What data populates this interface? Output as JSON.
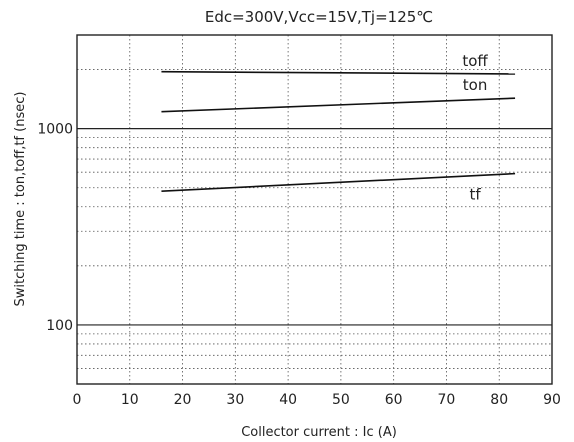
{
  "chart_data": {
    "type": "line",
    "title": "Edc=300V,Vcc=15V,Tj=125℃",
    "xlabel": "Collector current : Ic (A)",
    "ylabel": "Switching time : ton,toff,tf (nsec)",
    "x_scale": "linear",
    "y_scale": "log",
    "xlim": [
      0,
      90
    ],
    "ylim": [
      50,
      3000
    ],
    "x_ticks": [
      0,
      10,
      20,
      30,
      40,
      50,
      60,
      70,
      80,
      90
    ],
    "x_tick_labels": [
      "0",
      "10",
      "20",
      "30",
      "40",
      "50",
      "60",
      "70",
      "80",
      "90"
    ],
    "y_ticks": [
      100,
      1000
    ],
    "y_tick_labels": [
      "100",
      "1000"
    ],
    "grid": true,
    "series": [
      {
        "name": "toff",
        "x": [
          16,
          83
        ],
        "y": [
          1950,
          1900
        ]
      },
      {
        "name": "ton",
        "x": [
          16,
          83
        ],
        "y": [
          1220,
          1430
        ]
      },
      {
        "name": "tf",
        "x": [
          16,
          83
        ],
        "y": [
          480,
          590
        ]
      }
    ]
  }
}
